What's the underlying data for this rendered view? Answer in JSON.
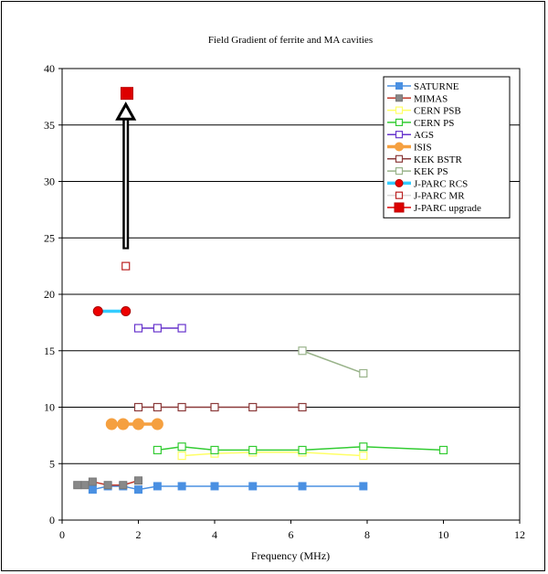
{
  "chart_data": {
    "type": "line",
    "title": "Field Gradient of ferrite and MA cavities",
    "xlabel": "Frequency (MHz)",
    "ylabel": "",
    "xlim": [
      0,
      12
    ],
    "ylim": [
      0,
      40
    ],
    "x_ticks": [
      "0",
      "2",
      "4",
      "6",
      "8",
      "10",
      "12"
    ],
    "y_ticks": [
      "0",
      "5",
      "10",
      "15",
      "20",
      "25",
      "30",
      "35",
      "40"
    ],
    "grid": "horizontal",
    "legend_position": "top-right",
    "series": [
      {
        "name": "SATURNE",
        "color": "#4a90e2",
        "marker": "square-filled",
        "x": [
          0.8,
          1.2,
          1.6,
          2.0,
          2.5,
          3.14,
          4.0,
          5.0,
          6.3,
          7.9
        ],
        "y": [
          2.7,
          3.0,
          3.0,
          2.7,
          3.0,
          3.0,
          3.0,
          3.0,
          3.0,
          3.0
        ]
      },
      {
        "name": "MIMAS",
        "color": "#c0392b",
        "marker": "square-filled-gray",
        "x": [
          0.4,
          0.6,
          0.8,
          1.2,
          1.6,
          2.0
        ],
        "y": [
          3.1,
          3.1,
          3.4,
          3.1,
          3.1,
          3.5
        ]
      },
      {
        "name": "CERN PSB",
        "color": "#ffff66",
        "marker": "square-open",
        "x": [
          3.14,
          4.0,
          5.0,
          6.3,
          7.9
        ],
        "y": [
          5.7,
          5.9,
          6.0,
          6.0,
          5.7
        ]
      },
      {
        "name": "CERN PS",
        "color": "#33cc33",
        "marker": "square-open",
        "x": [
          2.5,
          3.14,
          4.0,
          5.0,
          6.3,
          7.9,
          10.0
        ],
        "y": [
          6.2,
          6.5,
          6.2,
          6.2,
          6.2,
          6.5,
          6.2
        ]
      },
      {
        "name": "AGS",
        "color": "#6633cc",
        "marker": "square-open",
        "x": [
          2.0,
          2.5,
          3.14
        ],
        "y": [
          17.0,
          17.0,
          17.0
        ]
      },
      {
        "name": "ISIS",
        "color": "#f5a040",
        "marker": "circle-filled",
        "x": [
          1.3,
          1.6,
          2.0,
          2.5
        ],
        "y": [
          8.5,
          8.5,
          8.5,
          8.5
        ]
      },
      {
        "name": "KEK BSTR",
        "color": "#8b3a3a",
        "marker": "square-open",
        "x": [
          2.0,
          2.5,
          3.14,
          4.0,
          5.0,
          6.3
        ],
        "y": [
          10.0,
          10.0,
          10.0,
          10.0,
          10.0,
          10.0
        ]
      },
      {
        "name": "KEK PS",
        "color": "#99b38a",
        "marker": "square-open",
        "x": [
          6.3,
          7.9
        ],
        "y": [
          15.0,
          13.0
        ]
      },
      {
        "name": "J-PARC RCS",
        "color": "#33ccff",
        "marker": "circle-filled-red",
        "x": [
          0.94,
          1.67
        ],
        "y": [
          18.5,
          18.5
        ]
      },
      {
        "name": "J-PARC MR",
        "color": "#d9d9d9",
        "marker": "square-open-red",
        "x": [
          1.67
        ],
        "y": [
          22.5
        ]
      },
      {
        "name": "J-PARC upgrade",
        "color": "#dd0000",
        "marker": "square-big-red",
        "x": [
          1.7
        ],
        "y": [
          37.8
        ]
      }
    ],
    "annotations": [
      {
        "type": "arrow",
        "from": [
          1.67,
          24.0
        ],
        "to": [
          1.67,
          36.5
        ]
      }
    ]
  }
}
